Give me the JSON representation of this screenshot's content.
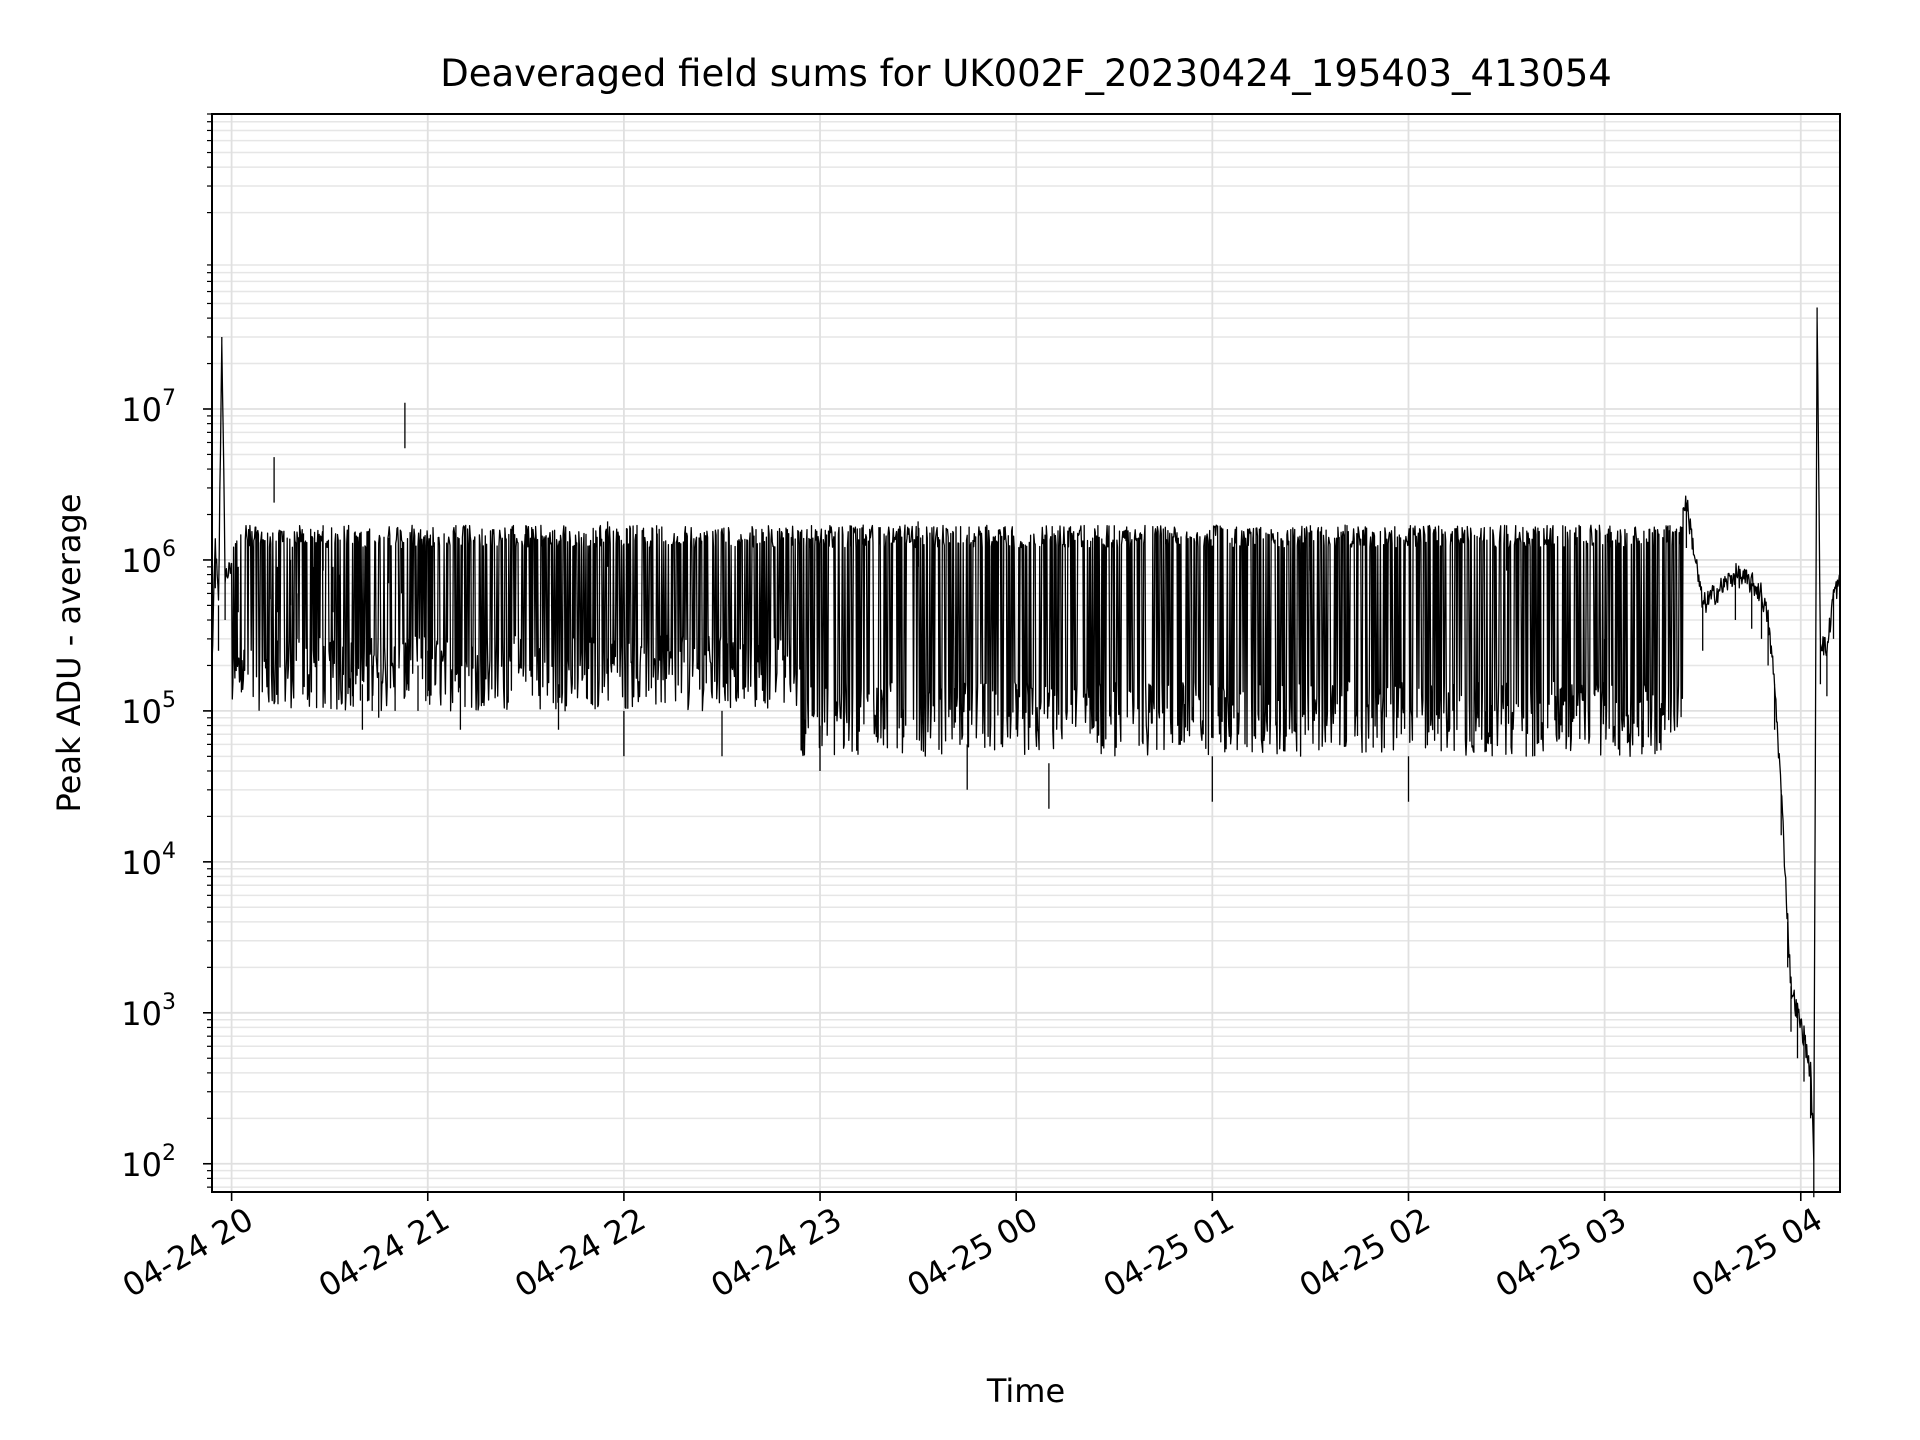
{
  "chart_data": {
    "type": "line",
    "title": "Deaveraged field sums for UK002F_20230424_195403_413054",
    "xlabel": "Time",
    "ylabel": "Peak ADU - average",
    "yscale": "log",
    "xlim": [
      "2023-04-24 19:54",
      "2023-04-25 04:12"
    ],
    "ylim": [
      65,
      900000000
    ],
    "grid": true,
    "line_color": "#000000",
    "x_ticks": [
      {
        "t": "2023-04-24 20:00",
        "label": "04-24 20"
      },
      {
        "t": "2023-04-24 21:00",
        "label": "04-24 21"
      },
      {
        "t": "2023-04-24 22:00",
        "label": "04-24 22"
      },
      {
        "t": "2023-04-24 23:00",
        "label": "04-24 23"
      },
      {
        "t": "2023-04-25 00:00",
        "label": "04-25 00"
      },
      {
        "t": "2023-04-25 01:00",
        "label": "04-25 01"
      },
      {
        "t": "2023-04-25 02:00",
        "label": "04-25 02"
      },
      {
        "t": "2023-04-25 03:00",
        "label": "04-25 03"
      },
      {
        "t": "2023-04-25 04:00",
        "label": "04-25 04"
      }
    ],
    "y_ticks": [
      {
        "v": 100,
        "base": "10",
        "exp": "2"
      },
      {
        "v": 1000,
        "base": "10",
        "exp": "3"
      },
      {
        "v": 10000,
        "base": "10",
        "exp": "4"
      },
      {
        "v": 100000,
        "base": "10",
        "exp": "5"
      },
      {
        "v": 1000000,
        "base": "10",
        "exp": "6"
      },
      {
        "v": 10000000,
        "base": "10",
        "exp": "7"
      }
    ],
    "series": [
      {
        "values": [
          [
            "2023-04-24 19:54",
            200000
          ],
          [
            "2023-04-24 19:55",
            1300000
          ],
          [
            "2023-04-24 19:56",
            500000
          ],
          [
            "2023-04-24 19:57",
            30000000
          ],
          [
            "2023-04-24 19:58",
            800000
          ],
          [
            "2023-04-24 20:02",
            900000
          ],
          [
            "2023-04-24 20:06",
            1000000
          ],
          [
            "2023-04-24 20:10",
            950000
          ],
          [
            "2023-04-24 20:12",
            1100000
          ],
          [
            "2023-04-24 20:13",
            4800000
          ],
          [
            "2023-04-24 20:14",
            900000
          ],
          [
            "2023-04-24 20:18",
            1000000
          ],
          [
            "2023-04-24 20:20",
            600000
          ],
          [
            "2023-04-24 20:22",
            1500000
          ],
          [
            "2023-04-24 20:25",
            900000
          ],
          [
            "2023-04-24 20:28",
            1700000
          ],
          [
            "2023-04-24 20:31",
            900000
          ],
          [
            "2023-04-24 20:33",
            800000
          ],
          [
            "2023-04-24 20:35",
            350000
          ],
          [
            "2023-04-24 20:37",
            250000
          ],
          [
            "2023-04-24 20:40",
            150000
          ],
          [
            "2023-04-24 20:43",
            200000
          ],
          [
            "2023-04-24 20:45",
            180000
          ],
          [
            "2023-04-24 20:48",
            1400000
          ],
          [
            "2023-04-24 20:50",
            200000
          ],
          [
            "2023-04-24 20:52",
            1200000
          ],
          [
            "2023-04-24 20:53",
            11000000
          ],
          [
            "2023-04-24 20:54",
            300000
          ],
          [
            "2023-04-24 20:57",
            200000
          ],
          [
            "2023-04-24 21:00",
            250000
          ],
          [
            "2023-04-24 21:05",
            1500000
          ],
          [
            "2023-04-24 21:10",
            150000
          ],
          [
            "2023-04-24 21:30",
            1700000
          ],
          [
            "2023-04-24 21:40",
            150000
          ],
          [
            "2023-04-24 21:55",
            1800000
          ],
          [
            "2023-04-24 22:00",
            100000
          ],
          [
            "2023-04-24 22:10",
            1700000
          ],
          [
            "2023-04-24 22:30",
            100000
          ],
          [
            "2023-04-24 22:50",
            1600000
          ],
          [
            "2023-04-24 23:00",
            80000
          ],
          [
            "2023-04-24 23:30",
            1800000
          ],
          [
            "2023-04-24 23:45",
            60000
          ],
          [
            "2023-04-25 00:00",
            150000
          ],
          [
            "2023-04-25 00:10",
            45000
          ],
          [
            "2023-04-25 00:30",
            1700000
          ],
          [
            "2023-04-25 01:00",
            50000
          ],
          [
            "2023-04-25 01:30",
            1700000
          ],
          [
            "2023-04-25 02:00",
            50000
          ],
          [
            "2023-04-25 02:30",
            1700000
          ],
          [
            "2023-04-25 03:00",
            300000
          ],
          [
            "2023-04-25 03:20",
            1700000
          ],
          [
            "2023-04-25 03:25",
            2400000
          ],
          [
            "2023-04-25 03:30",
            500000
          ],
          [
            "2023-04-25 03:40",
            800000
          ],
          [
            "2023-04-25 03:45",
            700000
          ],
          [
            "2023-04-25 03:48",
            600000
          ],
          [
            "2023-04-25 03:50",
            400000
          ],
          [
            "2023-04-25 03:52",
            150000
          ],
          [
            "2023-04-25 03:54",
            30000
          ],
          [
            "2023-04-25 03:56",
            4000
          ],
          [
            "2023-04-25 03:57",
            1500
          ],
          [
            "2023-04-25 03:59",
            1000
          ],
          [
            "2023-04-25 04:01",
            700
          ],
          [
            "2023-04-25 04:03",
            400
          ],
          [
            "2023-04-25 04:04",
            120
          ],
          [
            "2023-04-25 04:05",
            47000000
          ],
          [
            "2023-04-25 04:06",
            300000
          ],
          [
            "2023-04-25 04:08",
            250000
          ],
          [
            "2023-04-25 04:10",
            600000
          ],
          [
            "2023-04-25 04:12",
            700000
          ]
        ]
      }
    ]
  }
}
